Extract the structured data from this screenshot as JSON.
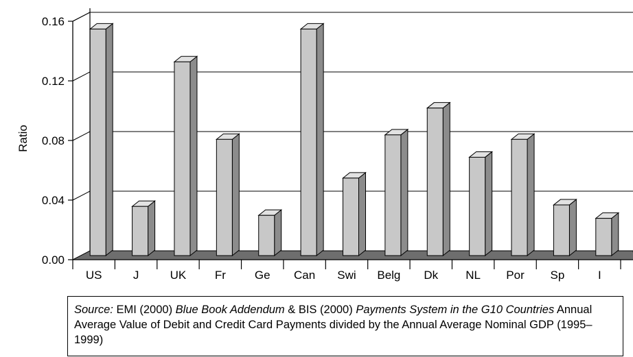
{
  "chart_data": {
    "type": "bar",
    "ylabel": "Ratio",
    "ylim": [
      0,
      0.16
    ],
    "yticks": [
      "0.00",
      "0.04",
      "0.08",
      "0.12",
      "0.16"
    ],
    "grid": true,
    "style": "3d-bars",
    "categories": [
      "US",
      "J",
      "UK",
      "Fr",
      "Ge",
      "Can",
      "Swi",
      "Belg",
      "Dk",
      "NL",
      "Por",
      "Sp",
      "I"
    ],
    "values": [
      0.152,
      0.033,
      0.13,
      0.078,
      0.027,
      0.152,
      0.052,
      0.081,
      0.099,
      0.066,
      0.078,
      0.034,
      0.025
    ],
    "colors": {
      "bar_face": "#c8c8c8",
      "bar_side": "#8c8c8c",
      "bar_top": "#e2e2e2",
      "floor": "#6e6e6e"
    }
  },
  "source": {
    "label": "Source:",
    "text1": " EMI (2000) ",
    "title1": "Blue Book Addendum",
    "text2": " & BIS (2000) ",
    "title2": "Payments System in the G10 Countries",
    "text3": " Annual Average Value of Debit and Credit Card Payments divided by the Annual Average Nominal GDP (1995–1999)"
  }
}
